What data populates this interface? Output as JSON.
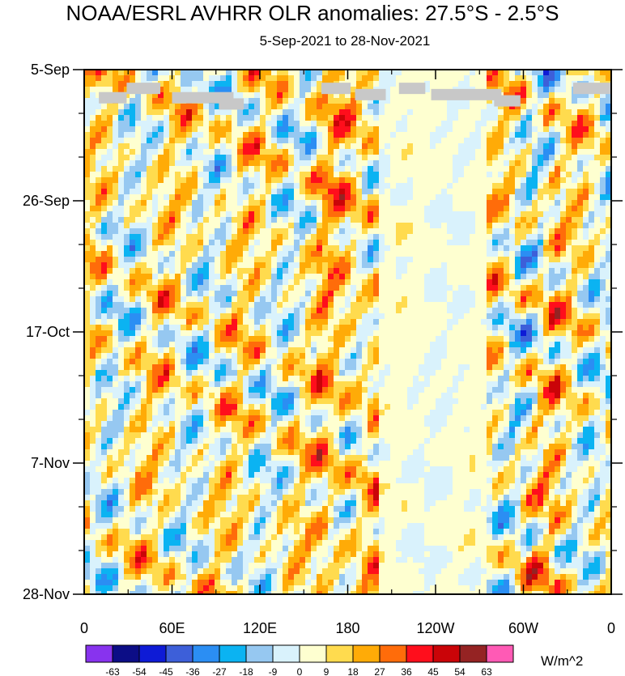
{
  "chart_data": {
    "type": "heatmap",
    "title": "NOAA/ESRL AVHRR OLR anomalies: 27.5°S - 2.5°S",
    "subtitle": "5-Sep-2021 to 28-Nov-2021",
    "xlabel": "",
    "ylabel": "",
    "x_ticks": [
      "0",
      "60E",
      "120E",
      "180",
      "120W",
      "60W",
      "0"
    ],
    "x_tick_values": [
      0,
      60,
      120,
      180,
      240,
      300,
      360
    ],
    "y_ticks": [
      "5-Sep",
      "26-Sep",
      "17-Oct",
      "7-Nov",
      "28-Nov"
    ],
    "y_tick_values": [
      0,
      21,
      42,
      63,
      84
    ],
    "xlim": [
      0,
      360
    ],
    "ylim": [
      0,
      84
    ],
    "colorbar": {
      "labels": [
        "-63",
        "-54",
        "-45",
        "-36",
        "-27",
        "-18",
        "-9",
        "0",
        "9",
        "18",
        "27",
        "36",
        "45",
        "54",
        "63"
      ],
      "colors": [
        "#8833ee",
        "#0c0d86",
        "#0e1bd6",
        "#3d5fd9",
        "#2b8ef3",
        "#0bb3f2",
        "#96c8f1",
        "#d9f2fc",
        "#feffd0",
        "#ffdb4e",
        "#ffab07",
        "#ff6c0a",
        "#ff0e1c",
        "#ca0408",
        "#952323",
        "#ff5ab5"
      ],
      "units": "W/m^2"
    },
    "missing_segments": [
      {
        "day": 4.5,
        "lon0": 10,
        "lon1": 29
      },
      {
        "day": 3.0,
        "lon0": 29,
        "lon1": 52
      },
      {
        "day": 4.5,
        "lon0": 60,
        "lon1": 102
      },
      {
        "day": 5.5,
        "lon0": 92,
        "lon1": 109
      },
      {
        "day": 3.0,
        "lon0": 162,
        "lon1": 182
      },
      {
        "day": 4.0,
        "lon0": 185,
        "lon1": 206
      },
      {
        "day": 3.0,
        "lon0": 215,
        "lon1": 233
      },
      {
        "day": 4.0,
        "lon0": 237,
        "lon1": 285
      },
      {
        "day": 5.0,
        "lon0": 280,
        "lon1": 298
      },
      {
        "day": 3.0,
        "lon0": 334,
        "lon1": 360
      }
    ]
  }
}
